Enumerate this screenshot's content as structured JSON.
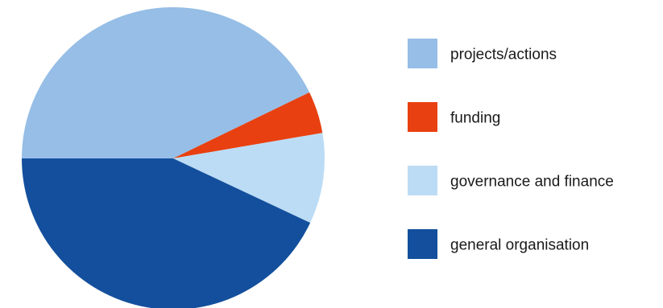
{
  "chart_data": {
    "type": "pie",
    "title": "",
    "start_angle_deg": 180,
    "direction": "clockwise",
    "legend_position": "right",
    "slices": [
      {
        "label": "projects/actions",
        "value": 42.8,
        "color": "#96BEE6"
      },
      {
        "label": "funding",
        "value": 4.5,
        "color": "#E84010"
      },
      {
        "label": "governance and finance",
        "value": 9.7,
        "color": "#BCDCF5"
      },
      {
        "label": "general organisation",
        "value": 43.0,
        "color": "#134F9C"
      }
    ]
  }
}
